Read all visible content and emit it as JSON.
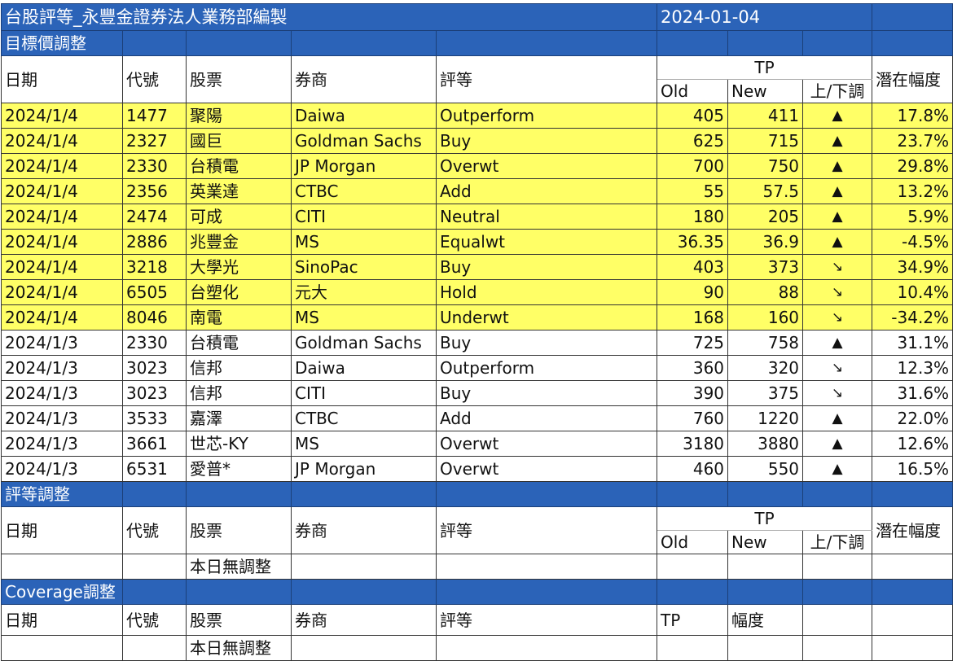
{
  "title": "台股評等_永豐金證券法人業務部編製",
  "date": "2024-01-04",
  "colors": {
    "header_blue": "#2b63b8",
    "highlight_yellow": "#ffff66"
  },
  "headers": {
    "date": "日期",
    "code": "代號",
    "stock": "股票",
    "broker": "券商",
    "rating": "評等",
    "tp": "TP",
    "old": "Old",
    "new": "New",
    "updown": "上/下調",
    "upside": "潛在幅度",
    "margin": "幅度"
  },
  "sections": {
    "target_price": "目標價調整",
    "rating_change": "評等調整",
    "coverage": "Coverage調整"
  },
  "no_change": "本日無調整",
  "rows": [
    {
      "date": "2024/1/4",
      "code": "1477",
      "stock": "聚陽",
      "broker": "Daiwa",
      "rating": "Outperform",
      "old": "405",
      "new": "411",
      "dir": "▲",
      "upside": "17.8%",
      "hl": true
    },
    {
      "date": "2024/1/4",
      "code": "2327",
      "stock": "國巨",
      "broker": "Goldman Sachs",
      "rating": "Buy",
      "old": "625",
      "new": "715",
      "dir": "▲",
      "upside": "23.7%",
      "hl": true
    },
    {
      "date": "2024/1/4",
      "code": "2330",
      "stock": "台積電",
      "broker": "JP Morgan",
      "rating": "Overwt",
      "old": "700",
      "new": "750",
      "dir": "▲",
      "upside": "29.8%",
      "hl": true
    },
    {
      "date": "2024/1/4",
      "code": "2356",
      "stock": "英業達",
      "broker": "CTBC",
      "rating": "Add",
      "old": "55",
      "new": "57.5",
      "dir": "▲",
      "upside": "13.2%",
      "hl": true
    },
    {
      "date": "2024/1/4",
      "code": "2474",
      "stock": "可成",
      "broker": "CITI",
      "rating": "Neutral",
      "old": "180",
      "new": "205",
      "dir": "▲",
      "upside": "5.9%",
      "hl": true
    },
    {
      "date": "2024/1/4",
      "code": "2886",
      "stock": "兆豐金",
      "broker": "MS",
      "rating": "Equalwt",
      "old": "36.35",
      "new": "36.9",
      "dir": "▲",
      "upside": "-4.5%",
      "hl": true
    },
    {
      "date": "2024/1/4",
      "code": "3218",
      "stock": "大學光",
      "broker": "SinoPac",
      "rating": "Buy",
      "old": "403",
      "new": "373",
      "dir": "↘",
      "upside": "34.9%",
      "hl": true
    },
    {
      "date": "2024/1/4",
      "code": "6505",
      "stock": "台塑化",
      "broker": "元大",
      "rating": "Hold",
      "old": "90",
      "new": "88",
      "dir": "↘",
      "upside": "10.4%",
      "hl": true
    },
    {
      "date": "2024/1/4",
      "code": "8046",
      "stock": "南電",
      "broker": "MS",
      "rating": "Underwt",
      "old": "168",
      "new": "160",
      "dir": "↘",
      "upside": "-34.2%",
      "hl": true
    },
    {
      "date": "2024/1/3",
      "code": "2330",
      "stock": "台積電",
      "broker": "Goldman Sachs",
      "rating": "Buy",
      "old": "725",
      "new": "758",
      "dir": "▲",
      "upside": "31.1%",
      "hl": false
    },
    {
      "date": "2024/1/3",
      "code": "3023",
      "stock": "信邦",
      "broker": "Daiwa",
      "rating": "Outperform",
      "old": "360",
      "new": "320",
      "dir": "↘",
      "upside": "12.3%",
      "hl": false
    },
    {
      "date": "2024/1/3",
      "code": "3023",
      "stock": "信邦",
      "broker": "CITI",
      "rating": "Buy",
      "old": "390",
      "new": "375",
      "dir": "↘",
      "upside": "31.6%",
      "hl": false
    },
    {
      "date": "2024/1/3",
      "code": "3533",
      "stock": "嘉澤",
      "broker": "CTBC",
      "rating": "Add",
      "old": "760",
      "new": "1220",
      "dir": "▲",
      "upside": "22.0%",
      "hl": false
    },
    {
      "date": "2024/1/3",
      "code": "3661",
      "stock": "世芯-KY",
      "broker": "MS",
      "rating": "Overwt",
      "old": "3180",
      "new": "3880",
      "dir": "▲",
      "upside": "12.6%",
      "hl": false
    },
    {
      "date": "2024/1/3",
      "code": "6531",
      "stock": "愛普*",
      "broker": "JP Morgan",
      "rating": "Overwt",
      "old": "460",
      "new": "550",
      "dir": "▲",
      "upside": "16.5%",
      "hl": false
    }
  ]
}
